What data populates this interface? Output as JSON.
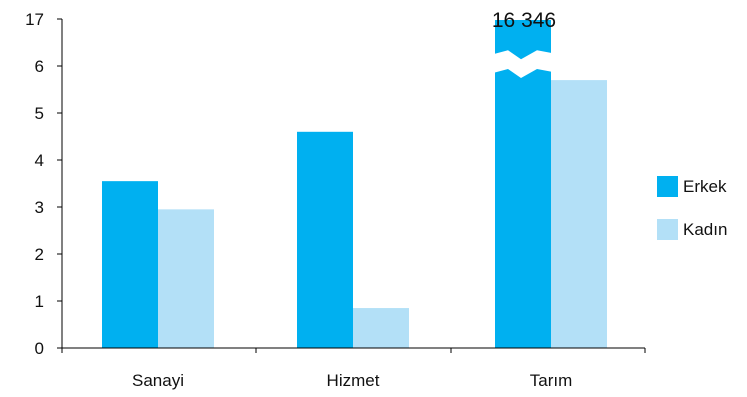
{
  "chart_data": {
    "type": "bar",
    "categories": [
      "Sanayi",
      "Hizmet",
      "Tarım"
    ],
    "series": [
      {
        "name": "Erkek",
        "color": "#00b0f0",
        "values": [
          3.55,
          4.6,
          16346
        ]
      },
      {
        "name": "Kadın",
        "color": "#b3e0f7",
        "values": [
          2.95,
          0.85,
          5.7
        ]
      }
    ],
    "y_ticks": [
      "0",
      "1",
      "2",
      "3",
      "4",
      "5",
      "6",
      "17"
    ],
    "y_axis_break": {
      "from": 6.7,
      "to": 16346,
      "top_tick": 17
    },
    "ylim": [
      0,
      17
    ],
    "data_labels": [
      {
        "series": 0,
        "category": 2,
        "text": "16 346"
      }
    ],
    "title": "",
    "xlabel": "",
    "ylabel": "",
    "grid": false,
    "legend_position": "right"
  }
}
